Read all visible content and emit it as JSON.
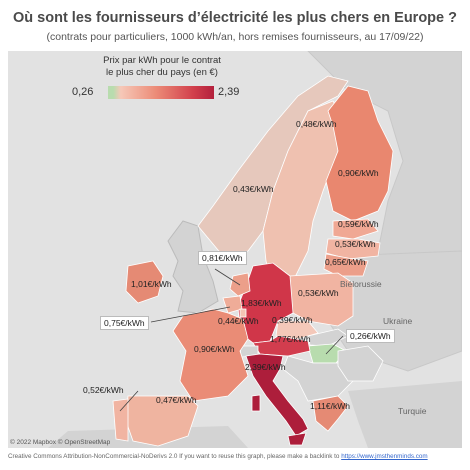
{
  "title": "Où sont les fournisseurs d’électricité les plus chers en Europe ?",
  "subtitle": "(contrats pour particuliers, 1000 kWh/an, hors remises fournisseurs, au 17/09/22)",
  "legend": {
    "title_line1": "Prix par kWh pour le contrat",
    "title_line2": "le plus cher du pays (en €)",
    "min": "0,26",
    "max": "2,39",
    "color_min": "#b8dcae",
    "color_max": "#b3203c"
  },
  "place_labels": {
    "belarus": "Biélorussie",
    "ukraine": "Ukraine",
    "turkey": "Turquie"
  },
  "countries": {
    "norway": {
      "label": "0,43€/kWh",
      "price": 0.43
    },
    "sweden": {
      "label": "0,48€/kWh",
      "price": 0.48
    },
    "finland": {
      "label": "0,90€/kWh",
      "price": 0.9
    },
    "estonia": {
      "label": "0,59€/kWh",
      "price": 0.59
    },
    "latvia": {
      "label": "0,53€/kWh",
      "price": 0.53
    },
    "lithuania": {
      "label": "0,65€/kWh",
      "price": 0.65
    },
    "ireland": {
      "label": "1,01€/kWh",
      "price": 1.01
    },
    "netherlands": {
      "label": "0,81€/kWh",
      "price": 0.81
    },
    "germany": {
      "label": "1,83€/kWh",
      "price": 1.83
    },
    "poland": {
      "label": "0,53€/kWh",
      "price": 0.53
    },
    "belgium": {
      "label": "0,75€/kWh",
      "price": 0.75
    },
    "luxembourg": {
      "label": "0,44€/kWh",
      "price": 0.44
    },
    "czechia": {
      "label": "0,39€/kWh",
      "price": 0.39
    },
    "france": {
      "label": "0,90€/kWh",
      "price": 0.9
    },
    "austria": {
      "label": "1,77€/kWh",
      "price": 1.77
    },
    "hungary": {
      "label": "0,26€/kWh",
      "price": 0.26
    },
    "italy": {
      "label": "2,39€/kWh",
      "price": 2.39
    },
    "portugal": {
      "label": "0,52€/kWh",
      "price": 0.52
    },
    "spain": {
      "label": "0,47€/kWh",
      "price": 0.47
    },
    "greece": {
      "label": "1,11€/kWh",
      "price": 1.11
    }
  },
  "attribution": "© 2022 Mapbox © OpenStreetMap",
  "footer": {
    "text": "Creative Commons Attribution-NonCommercial-NoDerivs 2.0 If you want to reuse this graph, please make a backlink to ",
    "link": "https://www.jmsthenminds.com"
  }
}
